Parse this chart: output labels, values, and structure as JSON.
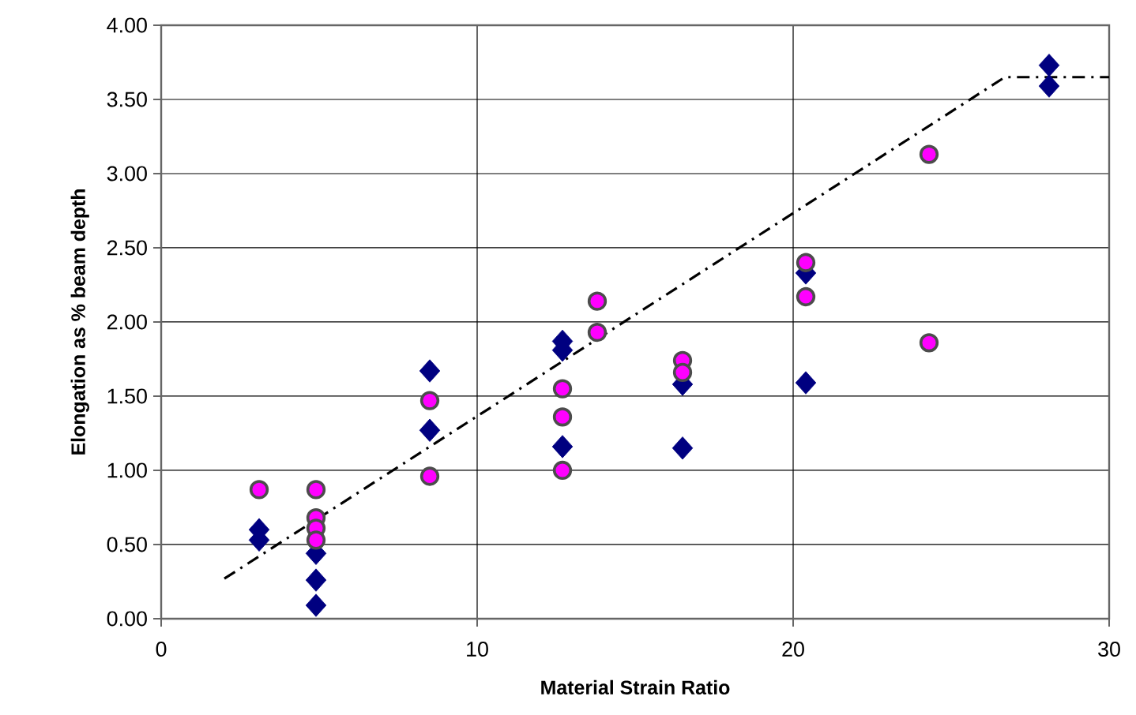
{
  "chart_data": {
    "type": "scatter",
    "xlabel": "Material Strain Ratio",
    "ylabel": "Elongation as % beam depth",
    "xlim": [
      0,
      30
    ],
    "ylim": [
      0,
      4
    ],
    "xticks": [
      0,
      10,
      20,
      30
    ],
    "yticks": [
      {
        "value": 0,
        "label": "0.00"
      },
      {
        "value": 0.5,
        "label": "0.50"
      },
      {
        "value": 1,
        "label": "1.00"
      },
      {
        "value": 1.5,
        "label": "1.50"
      },
      {
        "value": 2,
        "label": "2.00"
      },
      {
        "value": 2.5,
        "label": "2.50"
      },
      {
        "value": 3,
        "label": "3.00"
      },
      {
        "value": 3.5,
        "label": "3.50"
      },
      {
        "value": 4,
        "label": "4.00"
      }
    ],
    "grid": true,
    "series": [
      {
        "marker": "diamond",
        "color": "#000080",
        "x": [
          3.1,
          3.1,
          4.9,
          4.9,
          4.9,
          8.5,
          8.5,
          12.7,
          12.7,
          12.7,
          16.5,
          16.5,
          20.4,
          20.4,
          28.1,
          28.1
        ],
        "values": [
          0.6,
          0.53,
          0.44,
          0.26,
          0.09,
          1.67,
          1.27,
          1.87,
          1.81,
          1.16,
          1.58,
          1.15,
          2.33,
          1.59,
          3.73,
          3.59
        ]
      },
      {
        "marker": "circle",
        "color": "#ff00ff",
        "x": [
          3.1,
          4.9,
          4.9,
          4.9,
          4.9,
          8.5,
          8.5,
          12.7,
          12.7,
          12.7,
          13.8,
          13.8,
          16.5,
          16.5,
          20.4,
          20.4,
          24.3,
          24.3
        ],
        "values": [
          0.87,
          0.87,
          0.68,
          0.61,
          0.53,
          1.47,
          0.96,
          1.55,
          1.36,
          1.0,
          2.14,
          1.93,
          1.74,
          1.66,
          2.4,
          2.17,
          3.13,
          1.86
        ]
      },
      {
        "type": "line",
        "marker": "none",
        "line_style": "dashdot",
        "color": "#000000",
        "x": [
          2.0,
          26.7,
          30
        ],
        "values": [
          0.27,
          3.65,
          3.65
        ]
      }
    ]
  }
}
